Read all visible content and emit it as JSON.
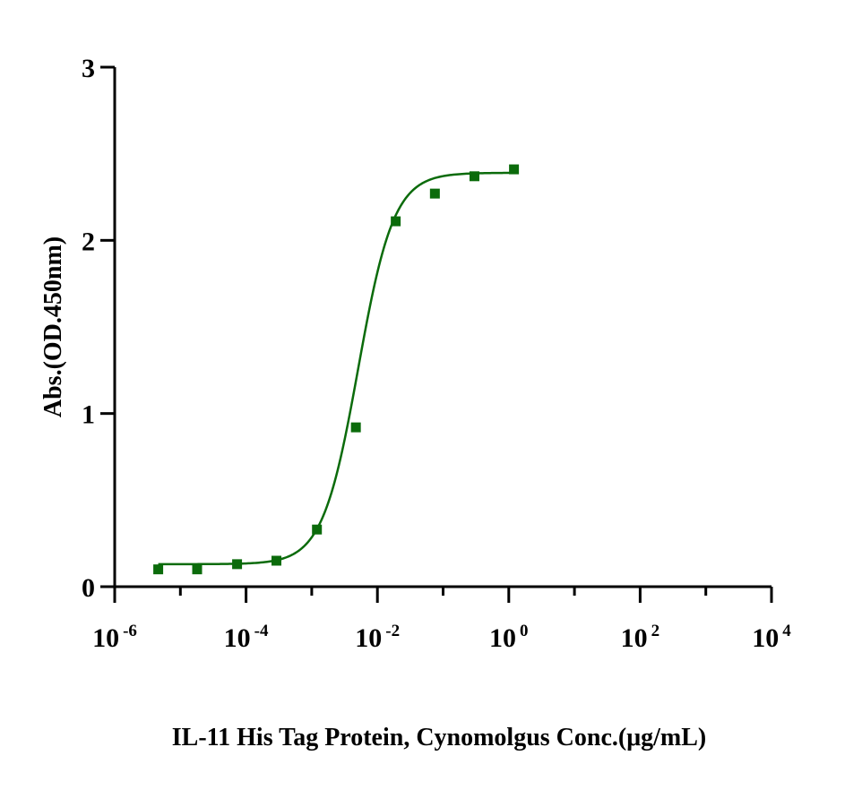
{
  "chart_data": {
    "type": "scatter",
    "title": "",
    "xlabel": "IL-11 His Tag Protein, Cynomolgus Conc.(μg/mL)",
    "ylabel": "Abs.(OD.450nm)",
    "x_scale": "log10",
    "xlim": [
      1e-06,
      10000
    ],
    "ylim": [
      0,
      3
    ],
    "x_ticks": [
      {
        "base": "10",
        "exp": "-6"
      },
      {
        "base": "10",
        "exp": "-4"
      },
      {
        "base": "10",
        "exp": "-2"
      },
      {
        "base": "10",
        "exp": "0"
      },
      {
        "base": "10",
        "exp": "2"
      },
      {
        "base": "10",
        "exp": "4"
      }
    ],
    "y_ticks": [
      "0",
      "1",
      "2",
      "3"
    ],
    "grid": false,
    "legend": "none",
    "colors": {
      "series": "#0b6b0b",
      "axis": "#000000"
    },
    "series": [
      {
        "marker": "square",
        "fit": "four-parameter logistic",
        "points": [
          {
            "x": 4.6e-06,
            "y": 0.1
          },
          {
            "x": 1.8e-05,
            "y": 0.1
          },
          {
            "x": 7.3e-05,
            "y": 0.13
          },
          {
            "x": 0.00029,
            "y": 0.15
          },
          {
            "x": 0.0012,
            "y": 0.33
          },
          {
            "x": 0.0047,
            "y": 0.92
          },
          {
            "x": 0.019,
            "y": 2.11
          },
          {
            "x": 0.075,
            "y": 2.27
          },
          {
            "x": 0.3,
            "y": 2.37
          },
          {
            "x": 1.2,
            "y": 2.41
          }
        ],
        "fit_params": {
          "bottom": 0.13,
          "top": 2.39,
          "ec50": 0.0051,
          "hill": 1.6
        }
      }
    ]
  }
}
